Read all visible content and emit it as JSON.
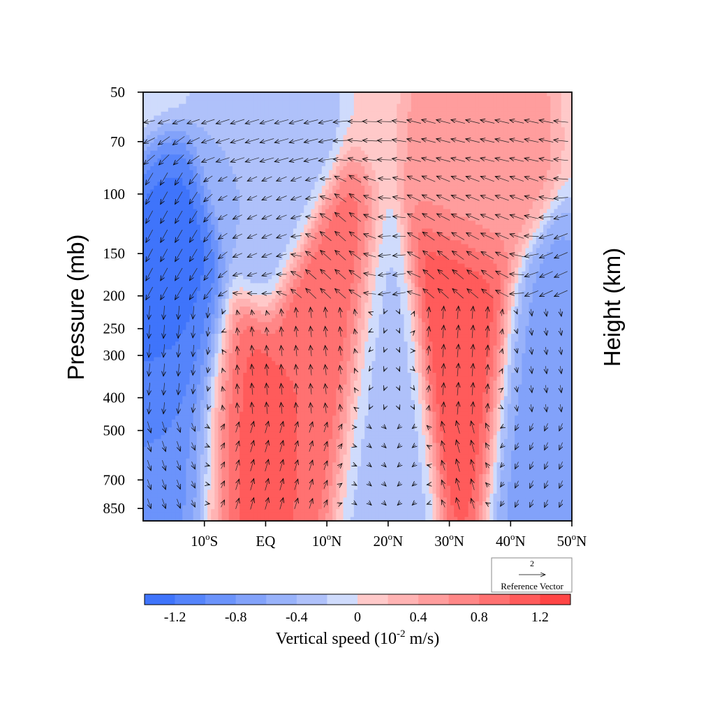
{
  "chart_data": {
    "type": "heatmap",
    "title": "",
    "ylabel_left": "Pressure (mb)",
    "ylabel_right": "Height (km)",
    "x_ticks": [
      {
        "lat": -10,
        "label": "10°S"
      },
      {
        "lat": 0,
        "label": "EQ"
      },
      {
        "lat": 10,
        "label": "10°N"
      },
      {
        "lat": 20,
        "label": "20°N"
      },
      {
        "lat": 30,
        "label": "30°N"
      },
      {
        "lat": 40,
        "label": "40°N"
      },
      {
        "lat": 50,
        "label": "50°N"
      }
    ],
    "x_tick_labels": [
      "10",
      "S",
      "EQ",
      "10",
      "N",
      "20",
      "N",
      "30",
      "N",
      "40",
      "N",
      "50",
      "N"
    ],
    "xlim": [
      -20,
      50
    ],
    "y_scale": "log",
    "ylim": [
      50,
      925
    ],
    "y_ticks": [
      {
        "p": 50,
        "label": "50"
      },
      {
        "p": 70,
        "label": "70"
      },
      {
        "p": 100,
        "label": "100"
      },
      {
        "p": 150,
        "label": "150"
      },
      {
        "p": 200,
        "label": "200"
      },
      {
        "p": 250,
        "label": "250"
      },
      {
        "p": 300,
        "label": "300"
      },
      {
        "p": 400,
        "label": "400"
      },
      {
        "p": 500,
        "label": "500"
      },
      {
        "p": 700,
        "label": "700"
      },
      {
        "p": 850,
        "label": "850"
      }
    ],
    "colorbar": {
      "label": "Vertical speed (10",
      "label_sup": "-2",
      "label_tail": " m/s)",
      "levels": [
        -1.4,
        -1.2,
        -1.0,
        -0.8,
        -0.6,
        -0.4,
        -0.2,
        0,
        0.2,
        0.4,
        0.6,
        0.8,
        1.0,
        1.2,
        1.4
      ],
      "colors": [
        "#3f74fb",
        "#5584fb",
        "#6b93fb",
        "#82a2fa",
        "#98b2fa",
        "#afc1fa",
        "#cfdbfc",
        "#ffc9c9",
        "#ffb3b3",
        "#ff9d9d",
        "#ff8787",
        "#ff7171",
        "#ff5b5b",
        "#ff4545"
      ],
      "tick_labels": [
        {
          "v": -1.2,
          "label": "-1.2"
        },
        {
          "v": -0.8,
          "label": "-0.8"
        },
        {
          "v": -0.4,
          "label": "-0.4"
        },
        {
          "v": 0,
          "label": "0"
        },
        {
          "v": 0.4,
          "label": "0.4"
        },
        {
          "v": 0.8,
          "label": "0.8"
        },
        {
          "v": 1.2,
          "label": "1.2"
        }
      ]
    },
    "field_features": [
      {
        "lat": -14,
        "p": 280,
        "w": -1.3
      },
      {
        "lat": -13,
        "p": 500,
        "w": -0.9
      },
      {
        "lat": -5,
        "p": 500,
        "w": 1.1
      },
      {
        "lat": 9,
        "p": 300,
        "w": 1.0
      },
      {
        "lat": 19,
        "p": 450,
        "w": -0.3
      },
      {
        "lat": 33,
        "p": 280,
        "w": 1.2
      },
      {
        "lat": 44,
        "p": 400,
        "w": -0.7
      },
      {
        "lat": 35,
        "p": 80,
        "w": 0.5
      },
      {
        "lat": 0,
        "p": 90,
        "w": -0.4
      }
    ],
    "reference_vector": {
      "value": "2",
      "label": "Reference Vector"
    }
  }
}
